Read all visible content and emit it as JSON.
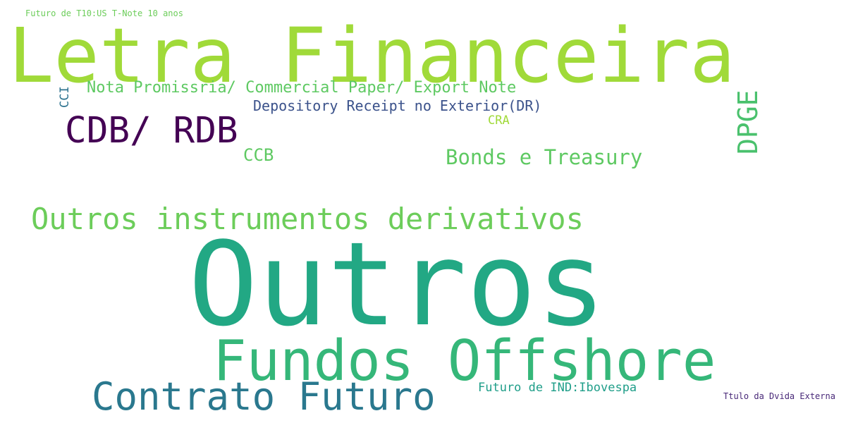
{
  "words": [
    {
      "id": "futuro-t10",
      "text": "Futuro de T10:US T-Note 10 anos",
      "color": "#6ccd5a",
      "vertical": false
    },
    {
      "id": "letra-financeira",
      "text": "Letra Financeira",
      "color": "#a0da39",
      "vertical": false
    },
    {
      "id": "nota-promissoria",
      "text": "Nota Promissria/ Commercial Paper/ Export Note",
      "color": "#5ec962",
      "vertical": false
    },
    {
      "id": "cci",
      "text": "CCI",
      "color": "#2c728e",
      "vertical": true
    },
    {
      "id": "depository-receipt",
      "text": "Depository Receipt no Exterior(DR)",
      "color": "#3b528b",
      "vertical": false
    },
    {
      "id": "dpge",
      "text": "DPGE",
      "color": "#4ac16d",
      "vertical": true
    },
    {
      "id": "cdb-rdb",
      "text": "CDB/ RDB",
      "color": "#440154",
      "vertical": false
    },
    {
      "id": "cra",
      "text": "CRA",
      "color": "#a0da39",
      "vertical": false
    },
    {
      "id": "ccb",
      "text": "CCB",
      "color": "#5ec962",
      "vertical": false
    },
    {
      "id": "bonds-treasury",
      "text": "Bonds e Treasury",
      "color": "#5ec962",
      "vertical": false
    },
    {
      "id": "outros-instrumentos",
      "text": "Outros instrumentos derivativos",
      "color": "#6ccd5a",
      "vertical": false
    },
    {
      "id": "outros",
      "text": "Outros",
      "color": "#22a884",
      "vertical": false
    },
    {
      "id": "fundos-offshore",
      "text": "Fundos Offshore",
      "color": "#35b779",
      "vertical": false
    },
    {
      "id": "contrato-futuro",
      "text": "Contrato Futuro",
      "color": "#2a788e",
      "vertical": false
    },
    {
      "id": "futuro-ind",
      "text": "Futuro de IND:Ibovespa",
      "color": "#1f9e89",
      "vertical": false
    },
    {
      "id": "titulo-divida",
      "text": "Ttulo da Dvida Externa",
      "color": "#482878",
      "vertical": false
    }
  ]
}
